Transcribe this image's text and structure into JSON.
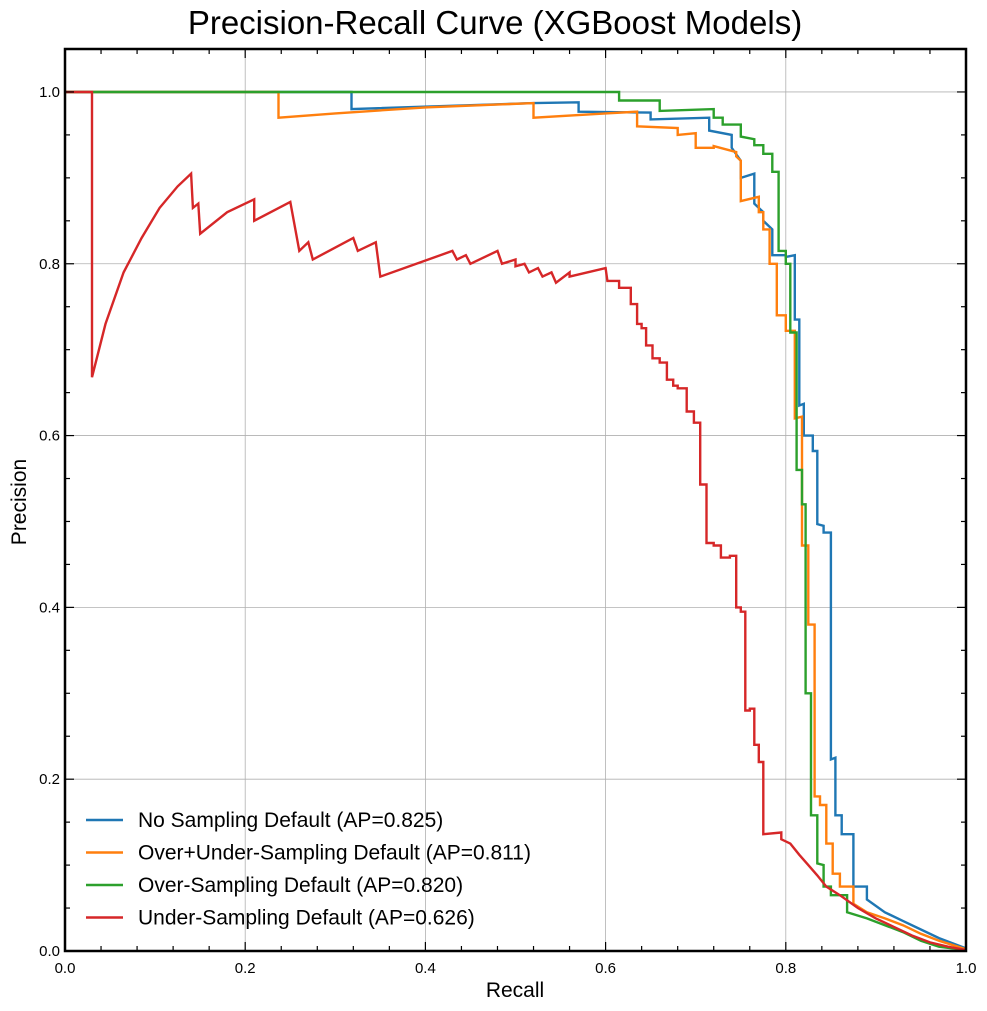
{
  "chart_data": {
    "type": "line",
    "title": "Precision-Recall Curve (XGBoost Models)",
    "xlabel": "Recall",
    "ylabel": "Precision",
    "xlim": [
      0.0,
      1.0
    ],
    "ylim": [
      0.0,
      1.05
    ],
    "x_ticks": [
      "0.0",
      "0.2",
      "0.4",
      "0.6",
      "0.8",
      "1.0"
    ],
    "y_ticks": [
      "0.0",
      "0.2",
      "0.4",
      "0.6",
      "0.8",
      "1.0"
    ],
    "grid": true,
    "legend_position": "lower-left",
    "series": [
      {
        "name": "No Sampling Default (AP=0.825)",
        "color": "#1f77b4",
        "points": [
          [
            0.0,
            1.0
          ],
          [
            0.318,
            1.0
          ],
          [
            0.318,
            0.98
          ],
          [
            0.52,
            0.987
          ],
          [
            0.57,
            0.988
          ],
          [
            0.57,
            0.977
          ],
          [
            0.65,
            0.976
          ],
          [
            0.65,
            0.968
          ],
          [
            0.715,
            0.97
          ],
          [
            0.715,
            0.955
          ],
          [
            0.74,
            0.95
          ],
          [
            0.74,
            0.935
          ],
          [
            0.75,
            0.92
          ],
          [
            0.75,
            0.9
          ],
          [
            0.765,
            0.905
          ],
          [
            0.765,
            0.87
          ],
          [
            0.775,
            0.86
          ],
          [
            0.775,
            0.85
          ],
          [
            0.785,
            0.84
          ],
          [
            0.785,
            0.81
          ],
          [
            0.8,
            0.81
          ],
          [
            0.8,
            0.808
          ],
          [
            0.81,
            0.81
          ],
          [
            0.81,
            0.735
          ],
          [
            0.815,
            0.735
          ],
          [
            0.815,
            0.635
          ],
          [
            0.82,
            0.637
          ],
          [
            0.82,
            0.6
          ],
          [
            0.83,
            0.6
          ],
          [
            0.83,
            0.582
          ],
          [
            0.835,
            0.582
          ],
          [
            0.835,
            0.497
          ],
          [
            0.842,
            0.495
          ],
          [
            0.842,
            0.487
          ],
          [
            0.85,
            0.487
          ],
          [
            0.85,
            0.223
          ],
          [
            0.855,
            0.225
          ],
          [
            0.855,
            0.158
          ],
          [
            0.862,
            0.158
          ],
          [
            0.862,
            0.136
          ],
          [
            0.875,
            0.136
          ],
          [
            0.875,
            0.075
          ],
          [
            0.89,
            0.075
          ],
          [
            0.89,
            0.06
          ],
          [
            0.91,
            0.045
          ],
          [
            0.93,
            0.035
          ],
          [
            0.95,
            0.025
          ],
          [
            0.97,
            0.015
          ],
          [
            1.0,
            0.003
          ]
        ]
      },
      {
        "name": "Over+Under-Sampling Default (AP=0.811)",
        "color": "#ff7f0e",
        "points": [
          [
            0.0,
            1.0
          ],
          [
            0.237,
            1.0
          ],
          [
            0.237,
            0.97
          ],
          [
            0.3,
            0.975
          ],
          [
            0.4,
            0.982
          ],
          [
            0.52,
            0.987
          ],
          [
            0.52,
            0.97
          ],
          [
            0.6,
            0.975
          ],
          [
            0.635,
            0.977
          ],
          [
            0.635,
            0.96
          ],
          [
            0.68,
            0.958
          ],
          [
            0.68,
            0.95
          ],
          [
            0.7,
            0.952
          ],
          [
            0.7,
            0.935
          ],
          [
            0.72,
            0.935
          ],
          [
            0.72,
            0.937
          ],
          [
            0.745,
            0.93
          ],
          [
            0.745,
            0.925
          ],
          [
            0.75,
            0.92
          ],
          [
            0.75,
            0.873
          ],
          [
            0.77,
            0.878
          ],
          [
            0.77,
            0.86
          ],
          [
            0.775,
            0.86
          ],
          [
            0.775,
            0.84
          ],
          [
            0.782,
            0.84
          ],
          [
            0.782,
            0.8
          ],
          [
            0.79,
            0.8
          ],
          [
            0.79,
            0.74
          ],
          [
            0.8,
            0.74
          ],
          [
            0.8,
            0.722
          ],
          [
            0.81,
            0.722
          ],
          [
            0.81,
            0.62
          ],
          [
            0.818,
            0.622
          ],
          [
            0.818,
            0.472
          ],
          [
            0.825,
            0.472
          ],
          [
            0.825,
            0.38
          ],
          [
            0.832,
            0.38
          ],
          [
            0.832,
            0.18
          ],
          [
            0.838,
            0.18
          ],
          [
            0.838,
            0.17
          ],
          [
            0.845,
            0.17
          ],
          [
            0.845,
            0.125
          ],
          [
            0.852,
            0.125
          ],
          [
            0.852,
            0.09
          ],
          [
            0.86,
            0.09
          ],
          [
            0.86,
            0.075
          ],
          [
            0.875,
            0.075
          ],
          [
            0.875,
            0.055
          ],
          [
            0.89,
            0.045
          ],
          [
            0.91,
            0.038
          ],
          [
            0.93,
            0.03
          ],
          [
            0.95,
            0.02
          ],
          [
            0.97,
            0.012
          ],
          [
            1.0,
            0.002
          ]
        ]
      },
      {
        "name": "Over-Sampling Default (AP=0.820)",
        "color": "#2ca02c",
        "points": [
          [
            0.0,
            1.0
          ],
          [
            0.615,
            1.0
          ],
          [
            0.615,
            0.99
          ],
          [
            0.66,
            0.99
          ],
          [
            0.66,
            0.978
          ],
          [
            0.72,
            0.98
          ],
          [
            0.72,
            0.97
          ],
          [
            0.73,
            0.97
          ],
          [
            0.73,
            0.962
          ],
          [
            0.75,
            0.962
          ],
          [
            0.75,
            0.948
          ],
          [
            0.765,
            0.945
          ],
          [
            0.765,
            0.938
          ],
          [
            0.775,
            0.938
          ],
          [
            0.775,
            0.928
          ],
          [
            0.785,
            0.928
          ],
          [
            0.785,
            0.907
          ],
          [
            0.792,
            0.907
          ],
          [
            0.792,
            0.815
          ],
          [
            0.8,
            0.815
          ],
          [
            0.8,
            0.8
          ],
          [
            0.805,
            0.8
          ],
          [
            0.805,
            0.72
          ],
          [
            0.812,
            0.72
          ],
          [
            0.812,
            0.56
          ],
          [
            0.818,
            0.56
          ],
          [
            0.818,
            0.52
          ],
          [
            0.822,
            0.52
          ],
          [
            0.822,
            0.3
          ],
          [
            0.828,
            0.3
          ],
          [
            0.828,
            0.158
          ],
          [
            0.835,
            0.158
          ],
          [
            0.835,
            0.102
          ],
          [
            0.842,
            0.1
          ],
          [
            0.842,
            0.075
          ],
          [
            0.85,
            0.075
          ],
          [
            0.85,
            0.065
          ],
          [
            0.868,
            0.065
          ],
          [
            0.868,
            0.045
          ],
          [
            0.89,
            0.038
          ],
          [
            0.91,
            0.03
          ],
          [
            0.93,
            0.022
          ],
          [
            0.95,
            0.012
          ],
          [
            0.97,
            0.005
          ],
          [
            1.0,
            0.001
          ]
        ]
      },
      {
        "name": "Under-Sampling Default (AP=0.626)",
        "color": "#d62728",
        "points": [
          [
            0.0,
            1.0
          ],
          [
            0.03,
            1.0
          ],
          [
            0.03,
            0.668
          ],
          [
            0.045,
            0.73
          ],
          [
            0.065,
            0.79
          ],
          [
            0.085,
            0.83
          ],
          [
            0.105,
            0.865
          ],
          [
            0.125,
            0.89
          ],
          [
            0.14,
            0.905
          ],
          [
            0.142,
            0.865
          ],
          [
            0.148,
            0.87
          ],
          [
            0.15,
            0.835
          ],
          [
            0.18,
            0.86
          ],
          [
            0.21,
            0.875
          ],
          [
            0.21,
            0.85
          ],
          [
            0.25,
            0.872
          ],
          [
            0.26,
            0.815
          ],
          [
            0.27,
            0.825
          ],
          [
            0.275,
            0.805
          ],
          [
            0.32,
            0.83
          ],
          [
            0.325,
            0.815
          ],
          [
            0.345,
            0.825
          ],
          [
            0.35,
            0.785
          ],
          [
            0.39,
            0.8
          ],
          [
            0.43,
            0.815
          ],
          [
            0.435,
            0.805
          ],
          [
            0.445,
            0.81
          ],
          [
            0.45,
            0.8
          ],
          [
            0.48,
            0.815
          ],
          [
            0.485,
            0.8
          ],
          [
            0.5,
            0.805
          ],
          [
            0.5,
            0.797
          ],
          [
            0.51,
            0.8
          ],
          [
            0.515,
            0.79
          ],
          [
            0.525,
            0.795
          ],
          [
            0.53,
            0.785
          ],
          [
            0.54,
            0.79
          ],
          [
            0.545,
            0.778
          ],
          [
            0.56,
            0.79
          ],
          [
            0.56,
            0.785
          ],
          [
            0.6,
            0.795
          ],
          [
            0.602,
            0.78
          ],
          [
            0.615,
            0.78
          ],
          [
            0.615,
            0.772
          ],
          [
            0.628,
            0.772
          ],
          [
            0.628,
            0.753
          ],
          [
            0.635,
            0.753
          ],
          [
            0.635,
            0.73
          ],
          [
            0.64,
            0.73
          ],
          [
            0.64,
            0.725
          ],
          [
            0.645,
            0.725
          ],
          [
            0.645,
            0.705
          ],
          [
            0.652,
            0.705
          ],
          [
            0.652,
            0.69
          ],
          [
            0.66,
            0.69
          ],
          [
            0.66,
            0.685
          ],
          [
            0.668,
            0.685
          ],
          [
            0.668,
            0.665
          ],
          [
            0.675,
            0.665
          ],
          [
            0.675,
            0.658
          ],
          [
            0.68,
            0.658
          ],
          [
            0.68,
            0.655
          ],
          [
            0.69,
            0.655
          ],
          [
            0.69,
            0.628
          ],
          [
            0.698,
            0.628
          ],
          [
            0.698,
            0.615
          ],
          [
            0.705,
            0.615
          ],
          [
            0.705,
            0.543
          ],
          [
            0.712,
            0.543
          ],
          [
            0.712,
            0.475
          ],
          [
            0.72,
            0.475
          ],
          [
            0.72,
            0.472
          ],
          [
            0.728,
            0.472
          ],
          [
            0.728,
            0.458
          ],
          [
            0.738,
            0.458
          ],
          [
            0.738,
            0.46
          ],
          [
            0.745,
            0.46
          ],
          [
            0.745,
            0.4
          ],
          [
            0.75,
            0.4
          ],
          [
            0.75,
            0.395
          ],
          [
            0.755,
            0.395
          ],
          [
            0.755,
            0.28
          ],
          [
            0.76,
            0.28
          ],
          [
            0.76,
            0.282
          ],
          [
            0.765,
            0.282
          ],
          [
            0.765,
            0.24
          ],
          [
            0.77,
            0.24
          ],
          [
            0.77,
            0.22
          ],
          [
            0.775,
            0.22
          ],
          [
            0.775,
            0.136
          ],
          [
            0.795,
            0.138
          ],
          [
            0.795,
            0.13
          ],
          [
            0.805,
            0.125
          ],
          [
            0.815,
            0.112
          ],
          [
            0.825,
            0.1
          ],
          [
            0.835,
            0.088
          ],
          [
            0.845,
            0.075
          ],
          [
            0.86,
            0.065
          ],
          [
            0.88,
            0.05
          ],
          [
            0.9,
            0.038
          ],
          [
            0.92,
            0.028
          ],
          [
            0.94,
            0.018
          ],
          [
            0.96,
            0.01
          ],
          [
            0.98,
            0.005
          ],
          [
            1.0,
            0.001
          ]
        ]
      }
    ]
  }
}
